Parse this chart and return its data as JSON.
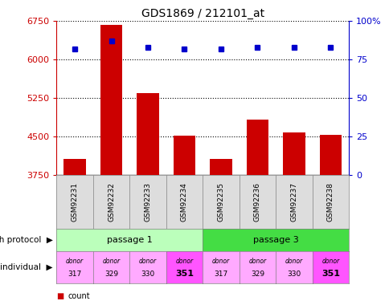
{
  "title": "GDS1869 / 212101_at",
  "samples": [
    "GSM92231",
    "GSM92232",
    "GSM92233",
    "GSM92234",
    "GSM92235",
    "GSM92236",
    "GSM92237",
    "GSM92238"
  ],
  "counts": [
    4050,
    6680,
    5340,
    4510,
    4060,
    4820,
    4580,
    4530
  ],
  "percentile_ranks": [
    82,
    87,
    83,
    82,
    82,
    83,
    83,
    83
  ],
  "ymin": 3750,
  "ymax": 6750,
  "yticks": [
    3750,
    4500,
    5250,
    6000,
    6750
  ],
  "right_yticks": [
    0,
    25,
    50,
    75,
    100
  ],
  "bar_color": "#cc0000",
  "dot_color": "#0000cc",
  "passage1_color": "#bbffbb",
  "passage3_color": "#44dd44",
  "individuals": [
    "donor\n317",
    "donor\n329",
    "donor\n330",
    "donor\n351",
    "donor\n317",
    "donor\n329",
    "donor\n330",
    "donor\n351"
  ],
  "individual_colors": [
    "#ffaaff",
    "#ffaaff",
    "#ffaaff",
    "#ff55ff",
    "#ffaaff",
    "#ffaaff",
    "#ffaaff",
    "#ff55ff"
  ],
  "bold_individual": [
    false,
    false,
    false,
    true,
    false,
    false,
    false,
    true
  ]
}
